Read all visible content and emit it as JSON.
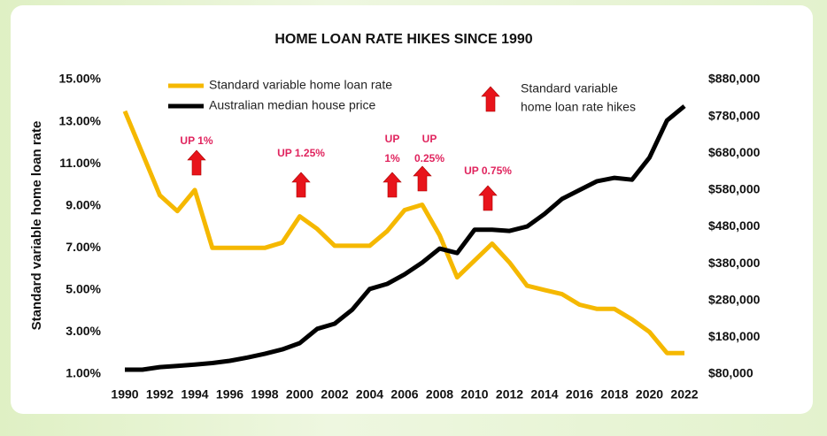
{
  "chart_data": {
    "type": "line",
    "title": "HOME LOAN RATE HIKES SINCE 1990",
    "y_label": "Standard variable home loan rate",
    "x": [
      1990,
      1991,
      1992,
      1993,
      1994,
      1995,
      1996,
      1997,
      1998,
      1999,
      2000,
      2001,
      2002,
      2003,
      2004,
      2005,
      2006,
      2007,
      2008,
      2009,
      2010,
      2011,
      2012,
      2013,
      2014,
      2015,
      2016,
      2017,
      2018,
      2019,
      2020,
      2021,
      2022
    ],
    "xlim": [
      1990,
      2022
    ],
    "xticks": [
      1990,
      1992,
      1994,
      1996,
      1998,
      2000,
      2002,
      2004,
      2006,
      2008,
      2010,
      2012,
      2014,
      2016,
      2018,
      2020,
      2022
    ],
    "ylim": [
      1,
      15
    ],
    "yticks": [
      {
        "value": 1,
        "label": "1.00%"
      },
      {
        "value": 3,
        "label": "3.00%"
      },
      {
        "value": 5,
        "label": "5.00%"
      },
      {
        "value": 7,
        "label": "7.00%"
      },
      {
        "value": 9,
        "label": "9.00%"
      },
      {
        "value": 11,
        "label": "11.00%"
      },
      {
        "value": 13,
        "label": "13.00%"
      },
      {
        "value": 15,
        "label": "15.00%"
      }
    ],
    "y2lim": [
      80000,
      880000
    ],
    "y2ticks": [
      {
        "value": 80000,
        "label": "$80,000"
      },
      {
        "value": 180000,
        "label": "$180,000"
      },
      {
        "value": 280000,
        "label": "$280,000"
      },
      {
        "value": 380000,
        "label": "$380,000"
      },
      {
        "value": 480000,
        "label": "$480,000"
      },
      {
        "value": 580000,
        "label": "$580,000"
      },
      {
        "value": 680000,
        "label": "$680,000"
      },
      {
        "value": 780000,
        "label": "$780,000"
      },
      {
        "value": 880000,
        "label": "$880,000"
      }
    ],
    "series": [
      {
        "name": "Standard variable home loan rate",
        "color": "#f5b800",
        "values": [
          13.5,
          11.5,
          9.5,
          8.75,
          9.75,
          7.0,
          7.0,
          7.0,
          7.0,
          7.25,
          8.5,
          7.9,
          7.1,
          7.1,
          7.1,
          7.8,
          8.8,
          9.05,
          7.6,
          5.6,
          6.4,
          7.2,
          6.3,
          5.2,
          5.0,
          4.8,
          4.3,
          4.1,
          4.1,
          3.6,
          3.0,
          2.0,
          2.0
        ]
      },
      {
        "name": "Australian median house price",
        "color": "#000000",
        "axis": "y2",
        "values": [
          92000,
          92000,
          99000,
          102000,
          106000,
          110000,
          116000,
          125000,
          135000,
          147000,
          164000,
          203000,
          217000,
          255000,
          311000,
          325000,
          351000,
          383000,
          421000,
          409000,
          472000,
          472000,
          469000,
          481000,
          515000,
          556000,
          580000,
          604000,
          613000,
          608000,
          668000,
          769000,
          808000
        ]
      }
    ],
    "hikes_legend": [
      "Standard variable",
      "home loan rate hikes"
    ],
    "annotations": [
      [
        "UP 1%"
      ],
      [
        "UP 1.25%"
      ],
      [
        "UP",
        "1%"
      ],
      [
        "UP",
        "0.25%"
      ],
      [
        "UP 0.75%"
      ]
    ],
    "arrow_color": "#e8141b"
  }
}
